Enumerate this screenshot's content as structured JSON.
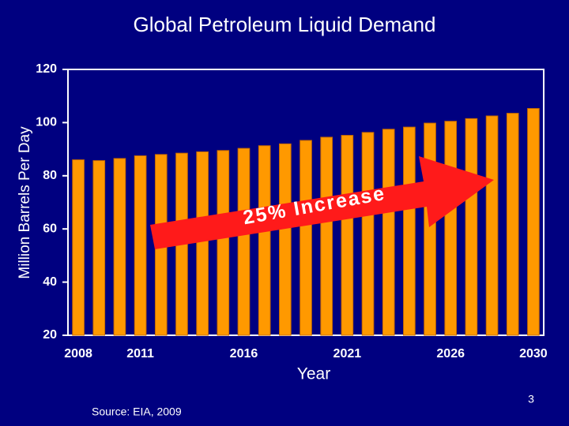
{
  "chart_data": {
    "type": "bar",
    "title": "Global Petroleum Liquid Demand",
    "y_label": "Million Barrels Per Day",
    "x_label": "Year",
    "categories": [
      "2008",
      null,
      null,
      "2011",
      null,
      null,
      null,
      null,
      "2016",
      null,
      null,
      null,
      null,
      "2021",
      null,
      null,
      null,
      null,
      "2026",
      null,
      null,
      null,
      "2030"
    ],
    "values": [
      86,
      85.7,
      86.5,
      87.5,
      88,
      88.5,
      89,
      89.5,
      90.3,
      91.3,
      92,
      93.3,
      94.5,
      95.2,
      96.3,
      97.5,
      98.3,
      99.8,
      100.5,
      101.5,
      102.5,
      103.5,
      105.3
    ],
    "color": "#ff9900",
    "ylim": [
      20,
      120
    ],
    "yticks": [
      20,
      40,
      60,
      80,
      100,
      120
    ],
    "annotation": "25% Increase",
    "source": "Source: EIA, 2009",
    "page_number": "3"
  }
}
